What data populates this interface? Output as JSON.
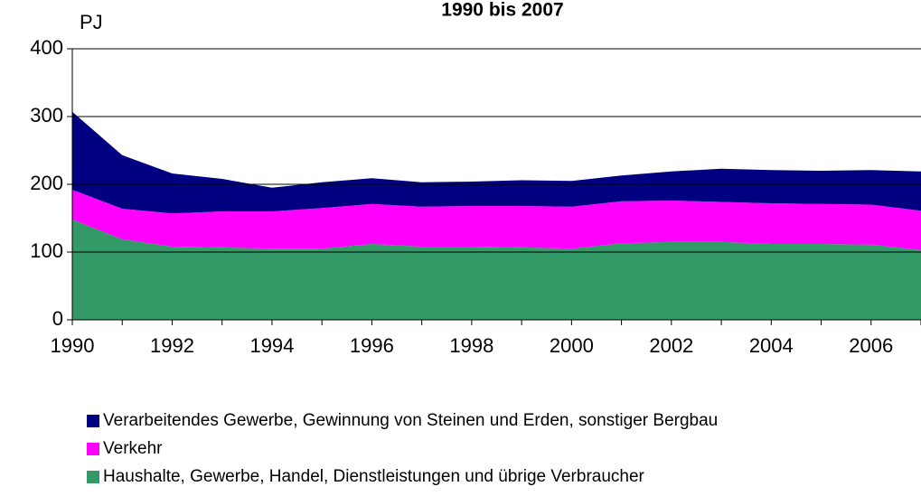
{
  "chart_data": {
    "type": "stacked_area",
    "title": "1990 bis 2007",
    "y_label": "PJ",
    "x": [
      1990,
      1991,
      1992,
      1993,
      1994,
      1995,
      1996,
      1997,
      1998,
      1999,
      2000,
      2001,
      2002,
      2003,
      2004,
      2005,
      2006,
      2007
    ],
    "series": [
      {
        "name": "Verarbeitendes Gewerbe, Gewinnung von Steinen und Erden, sonstiger Bergbau",
        "color": "#000080",
        "values": [
          115,
          79,
          59,
          48,
          35,
          38,
          38,
          36,
          36,
          38,
          38,
          38,
          43,
          49,
          49,
          49,
          51,
          58
        ]
      },
      {
        "name": "Verkehr",
        "color": "#ff00ff",
        "values": [
          44,
          45,
          49,
          53,
          55,
          60,
          59,
          59,
          60,
          61,
          62,
          62,
          61,
          59,
          60,
          59,
          59,
          58
        ]
      },
      {
        "name": "Haushalte, Gewerbe, Handel, Dienstleistungen und übrige Verbraucher",
        "color": "#339966",
        "values": [
          148,
          119,
          108,
          107,
          105,
          105,
          112,
          108,
          108,
          107,
          105,
          113,
          115,
          115,
          112,
          112,
          111,
          103
        ]
      }
    ],
    "xlim": [
      1990,
      2007
    ],
    "xticks": [
      1990,
      1992,
      1994,
      1996,
      1998,
      2000,
      2002,
      2004,
      2006
    ],
    "ylim": [
      0,
      400
    ],
    "yticks": [
      0,
      100,
      200,
      300,
      400
    ],
    "grid": true
  }
}
